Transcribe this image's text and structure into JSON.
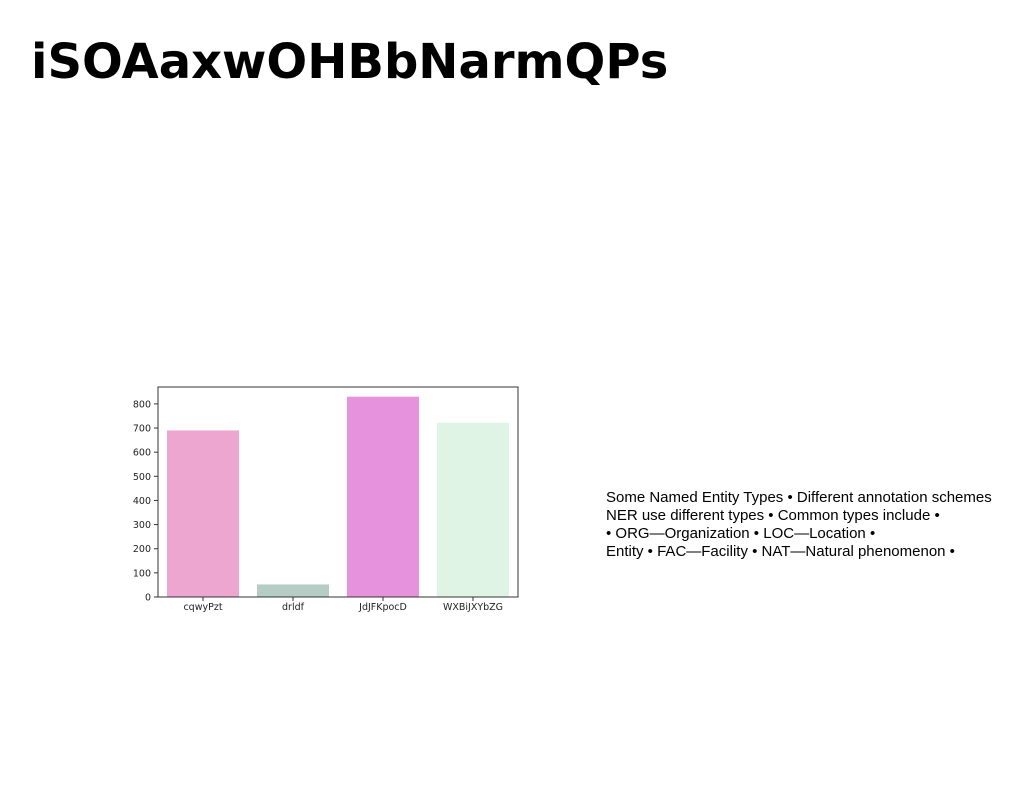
{
  "slide": {
    "title": "iSOAaxwOHBbNarmQPs",
    "body_lines": [
      "Some Named Entity Types • Different annotation schemes",
      "NER use different types • Common types include •",
      "• ORG—Organization • LOC—Location •",
      "Entity • FAC—Facility • NAT—Natural phenomenon •"
    ]
  },
  "chart_data": {
    "type": "bar",
    "categories": [
      "cqwyPzt",
      "drldf",
      "JdJFKpocD",
      "WXBiJXYbZG"
    ],
    "values": [
      690,
      52,
      830,
      722
    ],
    "colors": [
      "#eca6d0",
      "#b5cdc4",
      "#e692dc",
      "#e0f4e6"
    ],
    "title": "",
    "xlabel": "",
    "ylabel": "",
    "ylim": [
      0,
      870
    ],
    "yticks": [
      0,
      100,
      200,
      300,
      400,
      500,
      600,
      700,
      800
    ],
    "grid": false,
    "legend": "none"
  }
}
